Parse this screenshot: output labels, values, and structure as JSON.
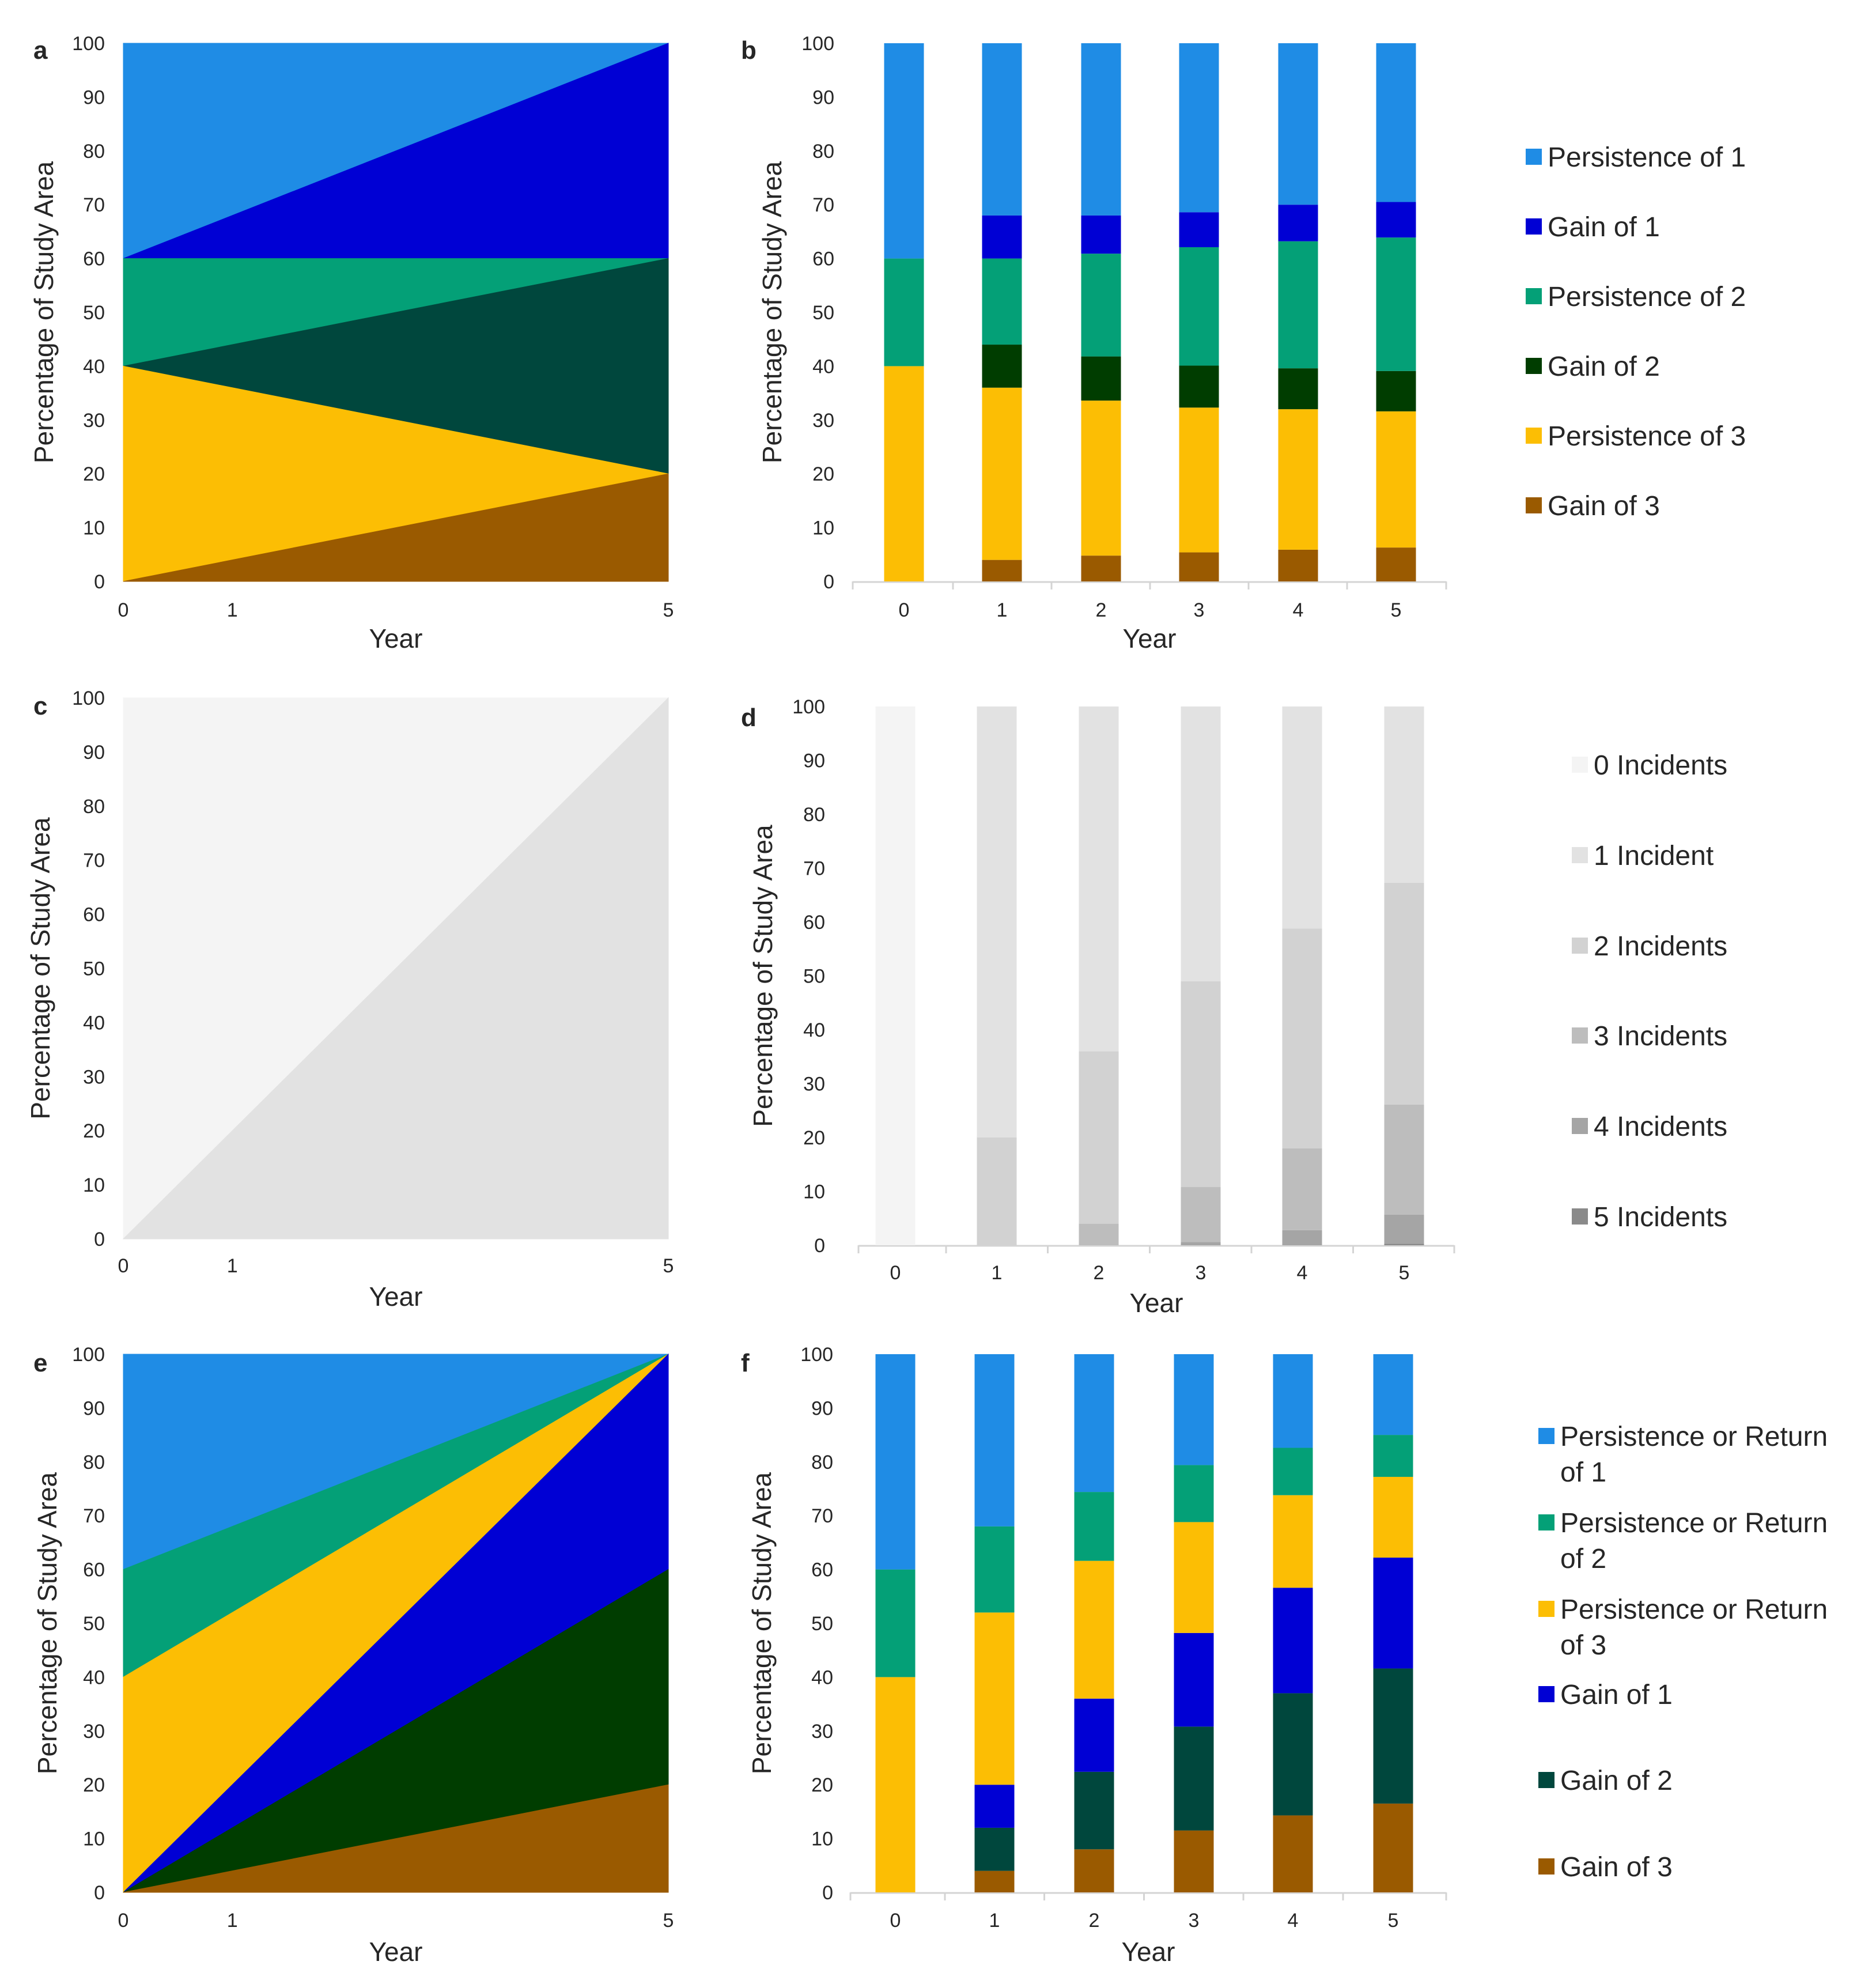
{
  "colors": {
    "persistence_1": "#1f8ce5",
    "gain_1": "#0000d4",
    "persistence_2": "#04a077",
    "gain_2_b": "#003d00",
    "gain_2_a": "#00473d",
    "persistence_3": "#fcbe04",
    "gain_3": "#9a5a00",
    "inc0": "#f4f4f4",
    "inc1": "#e2e2e2",
    "inc2": "#d2d2d2",
    "inc3": "#bdbdbd",
    "inc4": "#a5a5a5",
    "inc5": "#8a8a8a"
  },
  "chart_data": [
    {
      "panel": "a",
      "type": "area",
      "ylabel": "Percentage of Study Area",
      "xlabel": "Year",
      "x_ticks": [
        "0",
        "1",
        "5"
      ],
      "y_ticks": [
        "0",
        "10",
        "20",
        "30",
        "40",
        "50",
        "60",
        "70",
        "80",
        "90",
        "100"
      ],
      "ylim": [
        0,
        100
      ],
      "xlim": [
        0,
        5
      ],
      "regions": [
        {
          "name": "Persistence of 1",
          "color_key": "persistence_1",
          "points": [
            [
              0,
              60
            ],
            [
              0,
              100
            ],
            [
              5,
              100
            ]
          ]
        },
        {
          "name": "Gain of 1",
          "color_key": "gain_1",
          "points": [
            [
              0,
              60
            ],
            [
              5,
              100
            ],
            [
              5,
              60
            ]
          ]
        },
        {
          "name": "Persistence of 2",
          "color_key": "persistence_2",
          "points": [
            [
              0,
              40
            ],
            [
              0,
              60
            ],
            [
              5,
              60
            ]
          ]
        },
        {
          "name": "Gain of 2",
          "color_key": "gain_2_a",
          "points": [
            [
              0,
              40
            ],
            [
              5,
              60
            ],
            [
              5,
              20
            ]
          ]
        },
        {
          "name": "Persistence of 3",
          "color_key": "persistence_3",
          "points": [
            [
              0,
              0
            ],
            [
              0,
              40
            ],
            [
              5,
              20
            ]
          ]
        },
        {
          "name": "Gain of 3",
          "color_key": "gain_3",
          "points": [
            [
              0,
              0
            ],
            [
              5,
              20
            ],
            [
              5,
              0
            ]
          ]
        }
      ]
    },
    {
      "panel": "b",
      "type": "bar",
      "stacked": true,
      "ylabel": "Percentage of Study Area",
      "xlabel": "Year",
      "categories": [
        "0",
        "1",
        "2",
        "3",
        "4",
        "5"
      ],
      "y_ticks": [
        "0",
        "10",
        "20",
        "30",
        "40",
        "50",
        "60",
        "70",
        "80",
        "90",
        "100"
      ],
      "ylim": [
        0,
        100
      ],
      "series": [
        {
          "name": "Gain of 3",
          "color_key": "gain_3",
          "values": [
            0,
            4,
            4.8,
            5.4,
            5.9,
            6.3
          ]
        },
        {
          "name": "Persistence of 3",
          "color_key": "persistence_3",
          "values": [
            40,
            32,
            28.8,
            26.9,
            26.1,
            25.3
          ]
        },
        {
          "name": "Gain of 2",
          "color_key": "gain_2_b",
          "values": [
            0,
            8,
            8.2,
            7.8,
            7.6,
            7.5
          ]
        },
        {
          "name": "Persistence of 2",
          "color_key": "persistence_2",
          "values": [
            20,
            16,
            19.1,
            22,
            23.6,
            24.8
          ]
        },
        {
          "name": "Gain of 1",
          "color_key": "gain_1",
          "values": [
            0,
            8,
            7.1,
            6.5,
            6.8,
            6.6
          ]
        },
        {
          "name": "Persistence of 1",
          "color_key": "persistence_1",
          "values": [
            40,
            32,
            32,
            31.4,
            30,
            29.5
          ]
        }
      ],
      "legend": {
        "position": "right",
        "entries": [
          {
            "label": "Persistence of 1",
            "color_key": "persistence_1"
          },
          {
            "label": "Gain of 1",
            "color_key": "gain_1"
          },
          {
            "label": "Persistence of 2",
            "color_key": "persistence_2"
          },
          {
            "label": "Gain of 2",
            "color_key": "gain_2_b"
          },
          {
            "label": "Persistence of 3",
            "color_key": "persistence_3"
          },
          {
            "label": "Gain of 3",
            "color_key": "gain_3"
          }
        ]
      }
    },
    {
      "panel": "c",
      "type": "area",
      "ylabel": "Percentage of Study Area",
      "xlabel": "Year",
      "x_ticks": [
        "0",
        "1",
        "5"
      ],
      "y_ticks": [
        "0",
        "10",
        "20",
        "30",
        "40",
        "50",
        "60",
        "70",
        "80",
        "90",
        "100"
      ],
      "ylim": [
        0,
        100
      ],
      "xlim": [
        0,
        5
      ],
      "regions": [
        {
          "name": "0 Incidents",
          "color_key": "inc0",
          "points": [
            [
              0,
              0
            ],
            [
              0,
              100
            ],
            [
              5,
              100
            ]
          ]
        },
        {
          "name": "1 Incident",
          "color_key": "inc1",
          "points": [
            [
              0,
              0
            ],
            [
              5,
              100
            ],
            [
              5,
              0
            ]
          ]
        }
      ]
    },
    {
      "panel": "d",
      "type": "bar",
      "stacked": true,
      "ylabel": "Percentage of Study Area",
      "xlabel": "Year",
      "categories": [
        "0",
        "1",
        "2",
        "3",
        "4",
        "5"
      ],
      "y_ticks": [
        "0",
        "10",
        "20",
        "30",
        "40",
        "50",
        "60",
        "70",
        "80",
        "90",
        "100"
      ],
      "ylim": [
        0,
        100
      ],
      "series": [
        {
          "name": "5 Incidents",
          "color_key": "inc5",
          "values": [
            0,
            0,
            0,
            0,
            0,
            0.3
          ]
        },
        {
          "name": "4 Incidents",
          "color_key": "inc4",
          "values": [
            0,
            0,
            0,
            0.6,
            2.8,
            5.4
          ]
        },
        {
          "name": "3 Incidents",
          "color_key": "inc3",
          "values": [
            0,
            0,
            4,
            10.2,
            15.2,
            20.4
          ]
        },
        {
          "name": "2 Incidents",
          "color_key": "inc2",
          "values": [
            0,
            20,
            32,
            38.2,
            40.8,
            41.2
          ]
        },
        {
          "name": "1 Incident",
          "color_key": "inc1",
          "values": [
            0,
            80,
            64,
            51,
            41.2,
            32.7
          ]
        },
        {
          "name": "0 Incidents",
          "color_key": "inc0",
          "values": [
            100,
            0,
            0,
            0,
            0,
            0
          ]
        }
      ],
      "legend": {
        "position": "right",
        "entries": [
          {
            "label": "0 Incidents",
            "color_key": "inc0"
          },
          {
            "label": "1 Incident",
            "color_key": "inc1"
          },
          {
            "label": "2 Incidents",
            "color_key": "inc2"
          },
          {
            "label": "3 Incidents",
            "color_key": "inc3"
          },
          {
            "label": "4 Incidents",
            "color_key": "inc4"
          },
          {
            "label": "5 Incidents",
            "color_key": "inc5"
          }
        ]
      }
    },
    {
      "panel": "e",
      "type": "area",
      "ylabel": "Percentage of Study Area",
      "xlabel": "Year",
      "x_ticks": [
        "0",
        "1",
        "5"
      ],
      "y_ticks": [
        "0",
        "10",
        "20",
        "30",
        "40",
        "50",
        "60",
        "70",
        "80",
        "90",
        "100"
      ],
      "ylim": [
        0,
        100
      ],
      "xlim": [
        0,
        5
      ],
      "regions": [
        {
          "name": "Persistence or Return of 1",
          "color_key": "persistence_1",
          "points": [
            [
              0,
              60
            ],
            [
              0,
              100
            ],
            [
              5,
              100
            ]
          ]
        },
        {
          "name": "Persistence or Return of 2",
          "color_key": "persistence_2",
          "points": [
            [
              0,
              40
            ],
            [
              0,
              60
            ],
            [
              5,
              100
            ]
          ]
        },
        {
          "name": "Persistence or Return of 3",
          "color_key": "persistence_3",
          "points": [
            [
              0,
              0
            ],
            [
              0,
              40
            ],
            [
              5,
              100
            ]
          ]
        },
        {
          "name": "Gain of 1",
          "color_key": "gain_1",
          "points": [
            [
              0,
              0
            ],
            [
              5,
              100
            ],
            [
              5,
              60
            ]
          ]
        },
        {
          "name": "Gain of 2",
          "color_key": "gain_2_b",
          "points": [
            [
              0,
              0
            ],
            [
              5,
              60
            ],
            [
              5,
              20
            ]
          ]
        },
        {
          "name": "Gain of 3",
          "color_key": "gain_3",
          "points": [
            [
              0,
              0
            ],
            [
              5,
              20
            ],
            [
              5,
              0
            ]
          ]
        }
      ]
    },
    {
      "panel": "f",
      "type": "bar",
      "stacked": true,
      "ylabel": "Percentage of Study Area",
      "xlabel": "Year",
      "categories": [
        "0",
        "1",
        "2",
        "3",
        "4",
        "5"
      ],
      "y_ticks": [
        "0",
        "10",
        "20",
        "30",
        "40",
        "50",
        "60",
        "70",
        "80",
        "90",
        "100"
      ],
      "ylim": [
        0,
        100
      ],
      "series": [
        {
          "name": "Gain of 3",
          "color_key": "gain_3",
          "values": [
            0,
            4,
            8,
            11.5,
            14.3,
            16.5
          ]
        },
        {
          "name": "Gain of 2",
          "color_key": "gain_2_a",
          "values": [
            0,
            8,
            14.4,
            19.3,
            22.7,
            25.1
          ]
        },
        {
          "name": "Gain of 1",
          "color_key": "gain_1",
          "values": [
            0,
            8,
            13.6,
            17.4,
            19.6,
            20.6
          ]
        },
        {
          "name": "Persistence or Return of 3",
          "color_key": "persistence_3",
          "values": [
            40,
            32,
            25.6,
            20.6,
            17.2,
            15
          ]
        },
        {
          "name": "Persistence or Return of 2",
          "color_key": "persistence_2",
          "values": [
            20,
            16,
            12.8,
            10.6,
            8.8,
            7.8
          ]
        },
        {
          "name": "Persistence or Return of 1",
          "color_key": "persistence_1",
          "values": [
            40,
            32,
            25.6,
            20.6,
            17.4,
            15
          ]
        }
      ],
      "legend": {
        "position": "right",
        "entries": [
          {
            "label": [
              "Persistence or Return",
              "of 1"
            ],
            "color_key": "persistence_1"
          },
          {
            "label": [
              "Persistence or Return",
              "of 2"
            ],
            "color_key": "persistence_2"
          },
          {
            "label": [
              "Persistence or Return",
              "of 3"
            ],
            "color_key": "persistence_3"
          },
          {
            "label": [
              "Gain of 1"
            ],
            "color_key": "gain_1"
          },
          {
            "label": [
              "Gain of 2"
            ],
            "color_key": "gain_2_a"
          },
          {
            "label": [
              "Gain of 3"
            ],
            "color_key": "gain_3"
          }
        ]
      }
    }
  ]
}
